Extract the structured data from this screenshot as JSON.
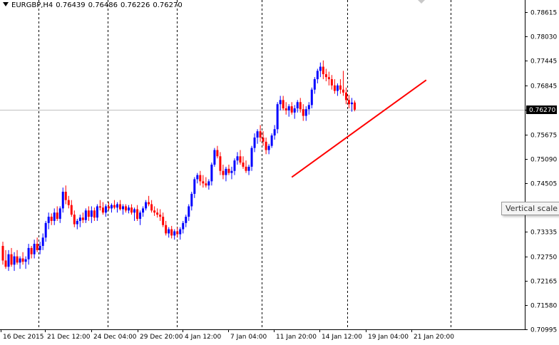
{
  "header": {
    "symbol": "EURGBP,H4",
    "open": "0.76439",
    "high": "0.76486",
    "low": "0.76226",
    "close": "0.76270"
  },
  "tooltip": "Vertical scale",
  "colors": {
    "bull": "#0000ff",
    "bear": "#ff0000",
    "trendline": "#ff0000",
    "grid": "#000000"
  },
  "chart_data": {
    "type": "candlestick",
    "ylim": [
      0.70999,
      0.789
    ],
    "y_ticks": [
      "0.78615",
      "0.78030",
      "0.77445",
      "0.76845",
      "0.76270",
      "0.75675",
      "0.75090",
      "0.74505",
      "0.73920",
      "0.73335",
      "0.72750",
      "0.72165",
      "0.71580",
      "0.70995"
    ],
    "current_price": "0.76270",
    "x_ticks": [
      "16 Dec 2015",
      "21 Dec 12:00",
      "24 Dec 04:00",
      "29 Dec 20:00",
      "4 Jan 12:00",
      "7 Jan 04:00",
      "11 Jan 20:00",
      "14 Jan 12:00",
      "19 Jan 04:00",
      "21 Jan 20:00"
    ],
    "trendline": {
      "from": [
        101,
        0.7465
      ],
      "to": [
        148,
        0.7698
      ]
    },
    "candles": [
      [
        0.73,
        0.731,
        0.7255,
        0.7265
      ],
      [
        0.7265,
        0.729,
        0.7245,
        0.725
      ],
      [
        0.725,
        0.729,
        0.724,
        0.728
      ],
      [
        0.728,
        0.7295,
        0.725,
        0.7255
      ],
      [
        0.7255,
        0.7285,
        0.724,
        0.7275
      ],
      [
        0.7275,
        0.729,
        0.7255,
        0.726
      ],
      [
        0.726,
        0.7275,
        0.7245,
        0.727
      ],
      [
        0.727,
        0.7285,
        0.7255,
        0.7262
      ],
      [
        0.7262,
        0.7275,
        0.7245,
        0.7268
      ],
      [
        0.7268,
        0.7305,
        0.7255,
        0.7295
      ],
      [
        0.7295,
        0.73,
        0.727,
        0.728
      ],
      [
        0.728,
        0.7315,
        0.727,
        0.7305
      ],
      [
        0.7305,
        0.732,
        0.7285,
        0.729
      ],
      [
        0.729,
        0.731,
        0.728,
        0.73
      ],
      [
        0.73,
        0.733,
        0.729,
        0.732
      ],
      [
        0.732,
        0.736,
        0.731,
        0.7355
      ],
      [
        0.7355,
        0.738,
        0.734,
        0.737
      ],
      [
        0.737,
        0.7378,
        0.735,
        0.736
      ],
      [
        0.736,
        0.739,
        0.735,
        0.738
      ],
      [
        0.738,
        0.7395,
        0.736,
        0.7365
      ],
      [
        0.7365,
        0.7395,
        0.7355,
        0.739
      ],
      [
        0.739,
        0.744,
        0.738,
        0.743
      ],
      [
        0.743,
        0.7445,
        0.74,
        0.741
      ],
      [
        0.741,
        0.742,
        0.739,
        0.7398
      ],
      [
        0.7398,
        0.741,
        0.737,
        0.7375
      ],
      [
        0.7375,
        0.7385,
        0.7345,
        0.7352
      ],
      [
        0.7352,
        0.7365,
        0.734,
        0.736
      ],
      [
        0.736,
        0.7375,
        0.7345,
        0.7368
      ],
      [
        0.7368,
        0.738,
        0.7355,
        0.7362
      ],
      [
        0.7362,
        0.739,
        0.7355,
        0.7385
      ],
      [
        0.7385,
        0.7395,
        0.736,
        0.737
      ],
      [
        0.737,
        0.7395,
        0.7355,
        0.7385
      ],
      [
        0.7385,
        0.7392,
        0.736,
        0.7368
      ],
      [
        0.7368,
        0.74,
        0.736,
        0.7395
      ],
      [
        0.7395,
        0.741,
        0.7385,
        0.7392
      ],
      [
        0.7392,
        0.7405,
        0.7375,
        0.738
      ],
      [
        0.738,
        0.74,
        0.737,
        0.7395
      ],
      [
        0.7395,
        0.7405,
        0.7385,
        0.739
      ],
      [
        0.739,
        0.7402,
        0.738,
        0.7398
      ],
      [
        0.7398,
        0.741,
        0.7388,
        0.7392
      ],
      [
        0.7392,
        0.7405,
        0.738,
        0.74
      ],
      [
        0.74,
        0.741,
        0.7385,
        0.7388
      ],
      [
        0.7388,
        0.74,
        0.7375,
        0.7395
      ],
      [
        0.7395,
        0.74,
        0.738,
        0.7385
      ],
      [
        0.7385,
        0.7398,
        0.7378,
        0.7392
      ],
      [
        0.7392,
        0.74,
        0.7375,
        0.738
      ],
      [
        0.738,
        0.7392,
        0.736,
        0.7388
      ],
      [
        0.7388,
        0.7398,
        0.736,
        0.7365
      ],
      [
        0.7365,
        0.7385,
        0.735,
        0.738
      ],
      [
        0.738,
        0.7395,
        0.737,
        0.739
      ],
      [
        0.739,
        0.741,
        0.7385,
        0.7405
      ],
      [
        0.7405,
        0.742,
        0.7395,
        0.74
      ],
      [
        0.74,
        0.741,
        0.738,
        0.7385
      ],
      [
        0.7385,
        0.7395,
        0.7372,
        0.738
      ],
      [
        0.738,
        0.739,
        0.7368,
        0.7375
      ],
      [
        0.7375,
        0.7388,
        0.736,
        0.737
      ],
      [
        0.737,
        0.738,
        0.7345,
        0.735
      ],
      [
        0.735,
        0.736,
        0.7325,
        0.733
      ],
      [
        0.733,
        0.7345,
        0.732,
        0.734
      ],
      [
        0.734,
        0.7348,
        0.7318,
        0.7325
      ],
      [
        0.7325,
        0.734,
        0.7315,
        0.7335
      ],
      [
        0.7335,
        0.7345,
        0.732,
        0.7328
      ],
      [
        0.7328,
        0.7345,
        0.7315,
        0.734
      ],
      [
        0.734,
        0.736,
        0.733,
        0.7355
      ],
      [
        0.7355,
        0.7375,
        0.7345,
        0.737
      ],
      [
        0.737,
        0.74,
        0.736,
        0.7395
      ],
      [
        0.7395,
        0.743,
        0.7385,
        0.7425
      ],
      [
        0.7425,
        0.7465,
        0.7415,
        0.746
      ],
      [
        0.746,
        0.7475,
        0.745,
        0.747
      ],
      [
        0.747,
        0.748,
        0.7445,
        0.7455
      ],
      [
        0.7455,
        0.747,
        0.744,
        0.745
      ],
      [
        0.745,
        0.7465,
        0.744,
        0.7445
      ],
      [
        0.7445,
        0.746,
        0.7435,
        0.7455
      ],
      [
        0.7455,
        0.75,
        0.7445,
        0.7495
      ],
      [
        0.7495,
        0.7535,
        0.749,
        0.753
      ],
      [
        0.753,
        0.754,
        0.751,
        0.7515
      ],
      [
        0.7515,
        0.7525,
        0.747,
        0.748
      ],
      [
        0.748,
        0.7495,
        0.746,
        0.747
      ],
      [
        0.747,
        0.749,
        0.7455,
        0.7485
      ],
      [
        0.7485,
        0.7495,
        0.747,
        0.7475
      ],
      [
        0.7475,
        0.749,
        0.746,
        0.748
      ],
      [
        0.748,
        0.751,
        0.747,
        0.7505
      ],
      [
        0.7505,
        0.7525,
        0.7495,
        0.7515
      ],
      [
        0.7515,
        0.753,
        0.7495,
        0.75
      ],
      [
        0.75,
        0.7515,
        0.7485,
        0.749
      ],
      [
        0.749,
        0.7505,
        0.7475,
        0.748
      ],
      [
        0.748,
        0.7495,
        0.747,
        0.749
      ],
      [
        0.749,
        0.754,
        0.748,
        0.7535
      ],
      [
        0.7535,
        0.757,
        0.7525,
        0.756
      ],
      [
        0.756,
        0.758,
        0.7545,
        0.7575
      ],
      [
        0.7575,
        0.759,
        0.755,
        0.756
      ],
      [
        0.756,
        0.7575,
        0.754,
        0.755
      ],
      [
        0.755,
        0.756,
        0.752,
        0.753
      ],
      [
        0.753,
        0.7545,
        0.752,
        0.754
      ],
      [
        0.754,
        0.757,
        0.7535,
        0.7565
      ],
      [
        0.7565,
        0.759,
        0.7555,
        0.758
      ],
      [
        0.758,
        0.7645,
        0.757,
        0.764
      ],
      [
        0.764,
        0.766,
        0.7625,
        0.765
      ],
      [
        0.765,
        0.766,
        0.7625,
        0.763
      ],
      [
        0.763,
        0.7645,
        0.7615,
        0.7625
      ],
      [
        0.7625,
        0.764,
        0.761,
        0.7635
      ],
      [
        0.7635,
        0.7645,
        0.7615,
        0.762
      ],
      [
        0.762,
        0.7638,
        0.7605,
        0.763
      ],
      [
        0.763,
        0.765,
        0.762,
        0.7645
      ],
      [
        0.7645,
        0.7655,
        0.762,
        0.7628
      ],
      [
        0.7628,
        0.764,
        0.76,
        0.7612
      ],
      [
        0.7612,
        0.7635,
        0.76,
        0.7628
      ],
      [
        0.7628,
        0.7645,
        0.7615,
        0.7638
      ],
      [
        0.7638,
        0.768,
        0.763,
        0.7675
      ],
      [
        0.7675,
        0.7705,
        0.7665,
        0.77
      ],
      [
        0.77,
        0.7725,
        0.769,
        0.772
      ],
      [
        0.772,
        0.774,
        0.7705,
        0.773
      ],
      [
        0.773,
        0.7745,
        0.77,
        0.7712
      ],
      [
        0.7712,
        0.7725,
        0.7695,
        0.7705
      ],
      [
        0.7705,
        0.7718,
        0.7685,
        0.77
      ],
      [
        0.77,
        0.771,
        0.7675,
        0.7685
      ],
      [
        0.7685,
        0.77,
        0.7665,
        0.7672
      ],
      [
        0.7672,
        0.769,
        0.766,
        0.7685
      ],
      [
        0.7685,
        0.77,
        0.7665,
        0.7675
      ],
      [
        0.7675,
        0.772,
        0.766,
        0.7668
      ],
      [
        0.7668,
        0.768,
        0.764,
        0.765
      ],
      [
        0.765,
        0.7662,
        0.763,
        0.764
      ],
      [
        0.764,
        0.7655,
        0.7622,
        0.7644
      ],
      [
        0.7644,
        0.7649,
        0.7623,
        0.7627
      ]
    ]
  }
}
